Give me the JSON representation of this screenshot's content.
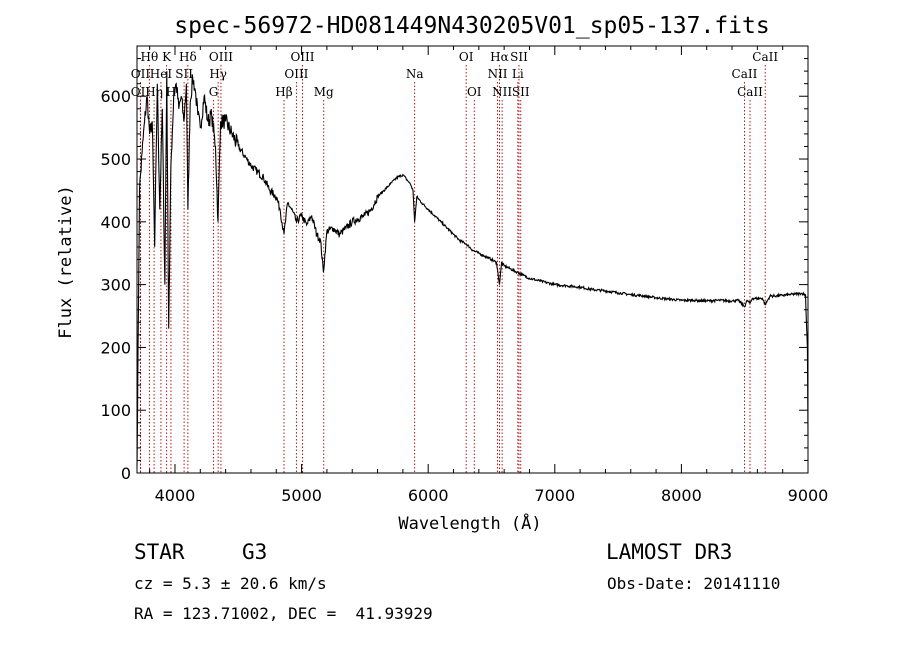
{
  "chart_data": {
    "type": "line",
    "title": "spec-56972-HD081449N430205V01_sp05-137.fits",
    "xlabel": "Wavelength (Å)",
    "ylabel": "Flux (relative)",
    "xlim": [
      3700,
      9000
    ],
    "ylim": [
      0,
      680
    ],
    "xticks": [
      4000,
      5000,
      6000,
      7000,
      8000,
      9000
    ],
    "yticks": [
      0,
      100,
      200,
      300,
      400,
      500,
      600
    ],
    "series": [
      {
        "name": "flux",
        "x": [
          3700,
          3720,
          3740,
          3760,
          3780,
          3800,
          3820,
          3840,
          3860,
          3880,
          3900,
          3920,
          3935,
          3950,
          3968,
          3990,
          4010,
          4030,
          4050,
          4070,
          4090,
          4102,
          4120,
          4140,
          4160,
          4180,
          4200,
          4230,
          4260,
          4290,
          4320,
          4340,
          4360,
          4400,
          4450,
          4500,
          4550,
          4600,
          4650,
          4700,
          4750,
          4800,
          4830,
          4861,
          4890,
          4920,
          4960,
          5000,
          5040,
          5080,
          5120,
          5150,
          5172,
          5200,
          5250,
          5300,
          5350,
          5400,
          5450,
          5500,
          5550,
          5600,
          5650,
          5700,
          5750,
          5800,
          5840,
          5860,
          5880,
          5893,
          5910,
          5950,
          6000,
          6050,
          6100,
          6150,
          6200,
          6250,
          6300,
          6350,
          6400,
          6450,
          6500,
          6540,
          6563,
          6580,
          6600,
          6650,
          6700,
          6750,
          6800,
          6900,
          7000,
          7100,
          7200,
          7300,
          7400,
          7500,
          7600,
          7700,
          7800,
          7900,
          8000,
          8100,
          8200,
          8300,
          8400,
          8450,
          8498,
          8520,
          8542,
          8560,
          8600,
          8640,
          8662,
          8700,
          8750,
          8800,
          8850,
          8900,
          8950,
          8980,
          8995,
          9000
        ],
        "y": [
          10,
          450,
          510,
          560,
          600,
          540,
          560,
          360,
          620,
          420,
          580,
          300,
          640,
          230,
          490,
          600,
          620,
          580,
          600,
          560,
          620,
          420,
          590,
          630,
          610,
          570,
          550,
          600,
          560,
          570,
          520,
          400,
          560,
          560,
          540,
          520,
          505,
          490,
          480,
          470,
          450,
          440,
          420,
          380,
          430,
          420,
          400,
          410,
          395,
          410,
          380,
          370,
          320,
          385,
          390,
          380,
          390,
          400,
          405,
          410,
          420,
          440,
          450,
          460,
          470,
          475,
          465,
          460,
          450,
          400,
          440,
          430,
          420,
          410,
          400,
          390,
          380,
          370,
          365,
          355,
          350,
          345,
          340,
          335,
          300,
          335,
          330,
          325,
          320,
          315,
          310,
          305,
          300,
          298,
          296,
          292,
          290,
          287,
          284,
          282,
          279,
          277,
          275,
          275,
          274,
          275,
          274,
          275,
          265,
          275,
          270,
          278,
          278,
          278,
          268,
          282,
          282,
          283,
          284,
          285,
          286,
          284,
          200,
          60
        ]
      }
    ],
    "spectral_lines": [
      {
        "label": "Hθ",
        "wl": 3798,
        "row": 0
      },
      {
        "label": "OII",
        "wl": 3727,
        "row": 1
      },
      {
        "label": "OII",
        "wl": 3727,
        "row": 2
      },
      {
        "label": "Hη",
        "wl": 3835,
        "row": 2
      },
      {
        "label": "HeI",
        "wl": 3889,
        "row": 1
      },
      {
        "label": "K",
        "wl": 3934,
        "row": 0
      },
      {
        "label": "H",
        "wl": 3968,
        "row": 2
      },
      {
        "label": "SII",
        "wl": 4072,
        "row": 1
      },
      {
        "label": "Hδ",
        "wl": 4102,
        "row": 0
      },
      {
        "label": "OIII",
        "wl": 4363,
        "row": 0
      },
      {
        "label": "Hγ",
        "wl": 4341,
        "row": 1
      },
      {
        "label": "G",
        "wl": 4305,
        "row": 2
      },
      {
        "label": "Hβ",
        "wl": 4861,
        "row": 2
      },
      {
        "label": "OIII",
        "wl": 5007,
        "row": 0
      },
      {
        "label": "OIII",
        "wl": 4959,
        "row": 1
      },
      {
        "label": "Mg",
        "wl": 5175,
        "row": 2
      },
      {
        "label": "Na",
        "wl": 5893,
        "row": 1
      },
      {
        "label": "OI",
        "wl": 6300,
        "row": 0
      },
      {
        "label": "OI",
        "wl": 6364,
        "row": 2
      },
      {
        "label": "Hα",
        "wl": 6563,
        "row": 0
      },
      {
        "label": "NII",
        "wl": 6548,
        "row": 1
      },
      {
        "label": "NII",
        "wl": 6584,
        "row": 2
      },
      {
        "label": "SII",
        "wl": 6717,
        "row": 0
      },
      {
        "label": "Li",
        "wl": 6708,
        "row": 1
      },
      {
        "label": "SII",
        "wl": 6731,
        "row": 2
      },
      {
        "label": "CaII",
        "wl": 8662,
        "row": 0
      },
      {
        "label": "CaII",
        "wl": 8498,
        "row": 1
      },
      {
        "label": "CaII",
        "wl": 8542,
        "row": 2
      }
    ]
  },
  "info": {
    "class": "STAR",
    "subclass": "G3",
    "survey": "LAMOST DR3",
    "cz": "cz = 5.3 ± 20.6 km/s",
    "obs_date": "Obs-Date: 20141110",
    "radec": "RA = 123.71002, DEC =  41.93929"
  },
  "colors": {
    "spectrum": "#000000",
    "line_markers": "#aa0000",
    "axes": "#000000"
  }
}
